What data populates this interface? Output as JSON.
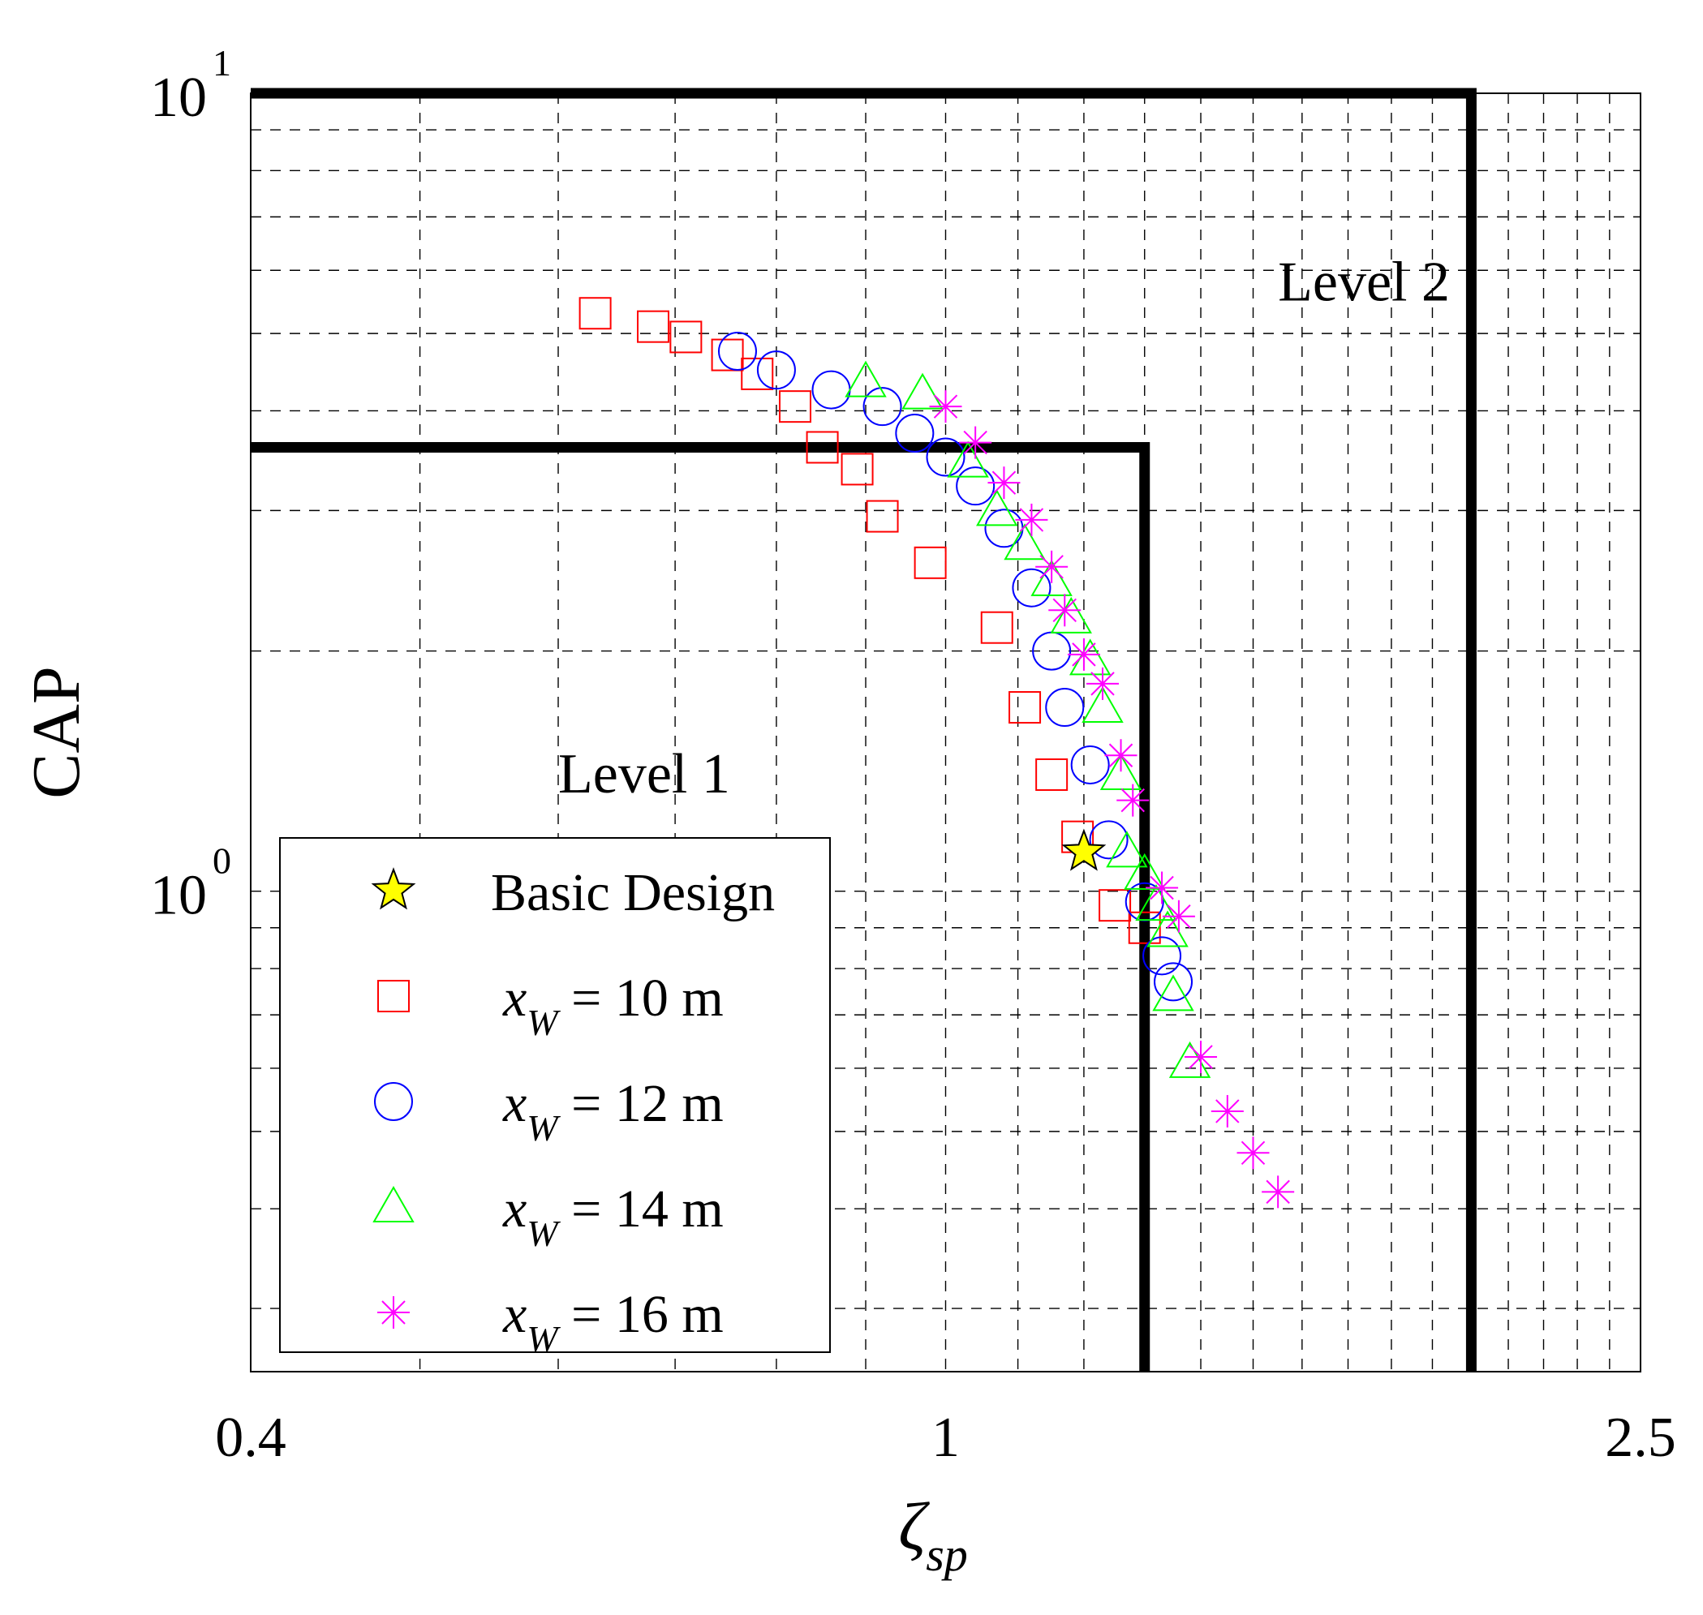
{
  "chart_data": {
    "type": "scatter",
    "title": "",
    "xlabel": "ζ",
    "xlabel_sub": "sp",
    "ylabel": "CAP",
    "x_scale": "log",
    "y_scale": "log",
    "xlim": [
      0.4,
      2.5
    ],
    "ylim": [
      0.25,
      10
    ],
    "x_tick_labels": [
      {
        "value": 0.4,
        "label": "0.4"
      },
      {
        "value": 1,
        "label": "1"
      },
      {
        "value": 2.5,
        "label": "2.5"
      }
    ],
    "y_tick_labels": [
      {
        "value": 1,
        "base": "10",
        "exp": "0"
      },
      {
        "value": 10,
        "base": "10",
        "exp": "1"
      }
    ],
    "x_grid": [
      0.5,
      0.6,
      0.7,
      0.8,
      0.9,
      1,
      1.1,
      1.2,
      1.3,
      1.4,
      1.5,
      1.6,
      1.7,
      1.8,
      1.9,
      2,
      2.1,
      2.2,
      2.3,
      2.4
    ],
    "y_grid": [
      0.3,
      0.4,
      0.5,
      0.6,
      0.7,
      0.8,
      0.9,
      1,
      2,
      3,
      4,
      5,
      6,
      7,
      8,
      9
    ],
    "grid": true,
    "boundaries": [
      {
        "name": "Level 1",
        "zeta_max": 1.3,
        "cap_max": 3.6
      },
      {
        "name": "Level 2",
        "zeta_max": 2.0,
        "cap_max": 10
      }
    ],
    "region_labels": [
      {
        "text": "Level 1",
        "x": 0.6,
        "y": 1.33
      },
      {
        "text": "Level 2",
        "x": 1.55,
        "y": 5.5
      }
    ],
    "legend": {
      "position": "bottom-left",
      "entries": [
        {
          "series": "basic",
          "label": "Basic Design"
        },
        {
          "series": "x10",
          "prefix": "x",
          "sub": "W",
          "label": " = 10 m"
        },
        {
          "series": "x12",
          "prefix": "x",
          "sub": "W",
          "label": " = 12 m"
        },
        {
          "series": "x14",
          "prefix": "x",
          "sub": "W",
          "label": " = 14 m"
        },
        {
          "series": "x16",
          "prefix": "x",
          "sub": "W",
          "label": " = 16 m"
        }
      ]
    },
    "series": [
      {
        "id": "basic",
        "name": "Basic Design",
        "marker": "star",
        "color": "#ffff00",
        "edge": "#000000",
        "points": [
          [
            1.2,
            1.12
          ]
        ]
      },
      {
        "id": "x10",
        "name": "x_W = 10 m",
        "marker": "square",
        "color": "#ff0000",
        "points": [
          [
            0.63,
            5.3
          ],
          [
            0.68,
            5.1
          ],
          [
            0.71,
            4.95
          ],
          [
            0.75,
            4.7
          ],
          [
            0.78,
            4.45
          ],
          [
            0.82,
            4.05
          ],
          [
            0.85,
            3.6
          ],
          [
            0.89,
            3.38
          ],
          [
            0.92,
            2.95
          ],
          [
            0.98,
            2.58
          ],
          [
            1.07,
            2.14
          ],
          [
            1.11,
            1.7
          ],
          [
            1.15,
            1.4
          ],
          [
            1.19,
            1.17
          ],
          [
            1.25,
            0.96
          ],
          [
            1.3,
            0.9
          ]
        ]
      },
      {
        "id": "x12",
        "name": "x_W = 12 m",
        "marker": "circle",
        "color": "#0000ff",
        "points": [
          [
            0.76,
            4.75
          ],
          [
            0.8,
            4.5
          ],
          [
            0.86,
            4.25
          ],
          [
            0.92,
            4.05
          ],
          [
            0.96,
            3.75
          ],
          [
            1.0,
            3.5
          ],
          [
            1.04,
            3.22
          ],
          [
            1.08,
            2.85
          ],
          [
            1.12,
            2.4
          ],
          [
            1.15,
            2.0
          ],
          [
            1.17,
            1.7
          ],
          [
            1.21,
            1.44
          ],
          [
            1.24,
            1.16
          ],
          [
            1.3,
            0.97
          ],
          [
            1.33,
            0.83
          ],
          [
            1.35,
            0.77
          ]
        ]
      },
      {
        "id": "x14",
        "name": "x_W = 14 m",
        "marker": "triangle",
        "color": "#00ff00",
        "points": [
          [
            0.9,
            4.35
          ],
          [
            0.97,
            4.2
          ],
          [
            1.03,
            3.45
          ],
          [
            1.07,
            3.0
          ],
          [
            1.11,
            2.72
          ],
          [
            1.15,
            2.45
          ],
          [
            1.18,
            2.2
          ],
          [
            1.21,
            1.95
          ],
          [
            1.23,
            1.7
          ],
          [
            1.26,
            1.4
          ],
          [
            1.27,
            1.12
          ],
          [
            1.3,
            1.05
          ],
          [
            1.32,
            0.96
          ],
          [
            1.34,
            0.89
          ],
          [
            1.35,
            0.74
          ],
          [
            1.38,
            0.61
          ]
        ]
      },
      {
        "id": "x16",
        "name": "x_W = 16 m",
        "marker": "asterisk",
        "color": "#ff00ff",
        "points": [
          [
            1.0,
            4.05
          ],
          [
            1.04,
            3.65
          ],
          [
            1.08,
            3.25
          ],
          [
            1.12,
            2.92
          ],
          [
            1.15,
            2.55
          ],
          [
            1.17,
            2.25
          ],
          [
            1.2,
            1.98
          ],
          [
            1.23,
            1.82
          ],
          [
            1.26,
            1.48
          ],
          [
            1.28,
            1.3
          ],
          [
            1.33,
            1.01
          ],
          [
            1.36,
            0.93
          ],
          [
            1.4,
            0.62
          ],
          [
            1.45,
            0.53
          ],
          [
            1.5,
            0.47
          ],
          [
            1.55,
            0.42
          ]
        ]
      }
    ]
  }
}
